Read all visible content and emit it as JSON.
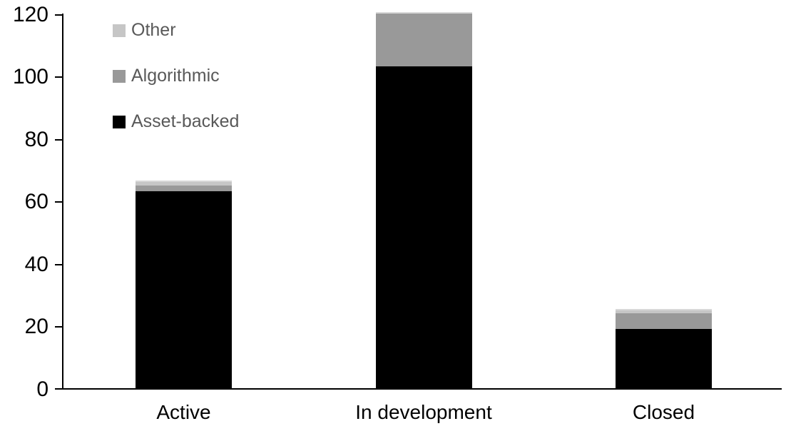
{
  "chart_data": {
    "type": "bar",
    "stacked": true,
    "title": "",
    "xlabel": "",
    "ylabel": "",
    "categories": [
      "Active",
      "In development",
      "Closed"
    ],
    "series": [
      {
        "name": "Asset-backed",
        "color": "#000000",
        "values": [
          63,
          103,
          19
        ]
      },
      {
        "name": "Algorithmic",
        "color": "#999999",
        "values": [
          2,
          17,
          5
        ]
      },
      {
        "name": "Other",
        "color": "#C6C6C6",
        "values": [
          1,
          0,
          1
        ]
      }
    ],
    "totals": [
      66,
      120,
      25
    ],
    "y_axis": {
      "min": 0,
      "max": 120,
      "tick_interval": 20,
      "ticks": [
        0,
        20,
        40,
        60,
        80,
        100,
        120
      ]
    },
    "legend": {
      "position": "top-left",
      "entries_top_to_bottom": [
        "Other",
        "Algorithmic",
        "Asset-backed"
      ]
    },
    "grid": false,
    "colors": {
      "axis": "#000000",
      "tick_label": "#000000",
      "category_label": "#000000",
      "legend_text": "#595959",
      "background": "#FFFFFF",
      "bar_top_edge": "#D8D8D8"
    }
  }
}
